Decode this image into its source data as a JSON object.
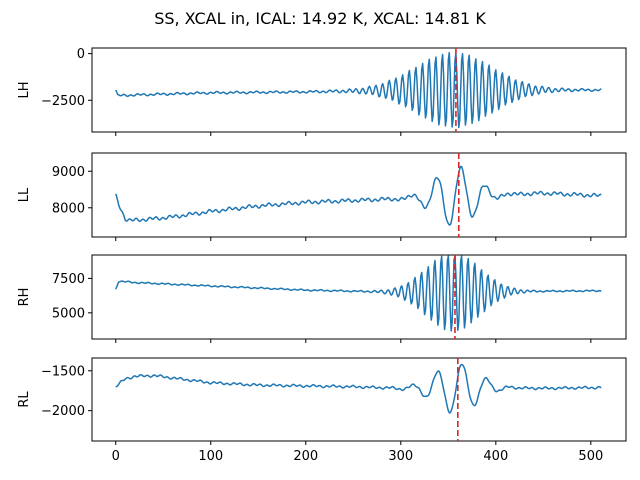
{
  "chart_data": {
    "type": "line",
    "title": "SS, XCAL in, ICAL: 14.92 K, XCAL: 14.81 K",
    "xlim": [
      -25,
      537
    ],
    "xticks": [
      0,
      100,
      200,
      300,
      400,
      500
    ],
    "xtick_labels": [
      "0",
      "100",
      "200",
      "300",
      "400",
      "500"
    ],
    "series_color": "#1f77b4",
    "marker_color": "#d62728",
    "panels": [
      {
        "ylabel": "LH",
        "ylim": [
          -4200,
          300
        ],
        "yticks": [
          0,
          -2500
        ],
        "ytick_labels": [
          "0",
          "−2500"
        ],
        "marker_x": 358,
        "keypoints": [
          [
            0,
            -1950
          ],
          [
            2,
            -2250
          ],
          [
            30,
            -2200
          ],
          [
            100,
            -2100
          ],
          [
            200,
            -2050
          ],
          [
            300,
            -1950
          ],
          [
            400,
            -1950
          ],
          [
            510,
            -1950
          ]
        ],
        "base_ripple": 70,
        "burst": {
          "center": 356,
          "amp": 2000,
          "width": 40,
          "period": 7
        }
      },
      {
        "ylabel": "LL",
        "ylim": [
          7200,
          9500
        ],
        "yticks": [
          8000,
          9000
        ],
        "ytick_labels": [
          "8000",
          "9000"
        ],
        "marker_x": 361,
        "keypoints": [
          [
            0,
            8330
          ],
          [
            3,
            8100
          ],
          [
            10,
            7700
          ],
          [
            15,
            7650
          ],
          [
            40,
            7700
          ],
          [
            60,
            7750
          ],
          [
            100,
            7900
          ],
          [
            150,
            8050
          ],
          [
            200,
            8150
          ],
          [
            250,
            8200
          ],
          [
            300,
            8250
          ],
          [
            350,
            8300
          ],
          [
            400,
            8350
          ],
          [
            450,
            8400
          ],
          [
            510,
            8330
          ]
        ],
        "base_ripple": 60,
        "burst": {
          "center": 357,
          "amp": 800,
          "width": 22,
          "period": 26
        }
      },
      {
        "ylabel": "RH",
        "ylim": [
          3100,
          9200
        ],
        "yticks": [
          5000,
          7500
        ],
        "ytick_labels": [
          "5000",
          "7500"
        ],
        "marker_x": 357,
        "keypoints": [
          [
            0,
            6700
          ],
          [
            3,
            7300
          ],
          [
            20,
            7200
          ],
          [
            100,
            6950
          ],
          [
            200,
            6650
          ],
          [
            300,
            6500
          ],
          [
            400,
            6550
          ],
          [
            510,
            6600
          ]
        ],
        "base_ripple": 60,
        "burst": {
          "center": 355,
          "amp": 2900,
          "width": 28,
          "period": 7
        }
      },
      {
        "ylabel": "RL",
        "ylim": [
          -2380,
          -1340
        ],
        "yticks": [
          -1500,
          -2000
        ],
        "ytick_labels": [
          "−1500",
          "−2000"
        ],
        "marker_x": 360,
        "keypoints": [
          [
            0,
            -1700
          ],
          [
            10,
            -1600
          ],
          [
            20,
            -1570
          ],
          [
            40,
            -1560
          ],
          [
            100,
            -1650
          ],
          [
            150,
            -1680
          ],
          [
            200,
            -1690
          ],
          [
            250,
            -1700
          ],
          [
            300,
            -1720
          ],
          [
            350,
            -1720
          ],
          [
            400,
            -1710
          ],
          [
            450,
            -1720
          ],
          [
            510,
            -1710
          ]
        ],
        "base_ripple": 18,
        "burst": {
          "center": 358,
          "amp": 320,
          "width": 22,
          "period": 26
        }
      }
    ]
  }
}
